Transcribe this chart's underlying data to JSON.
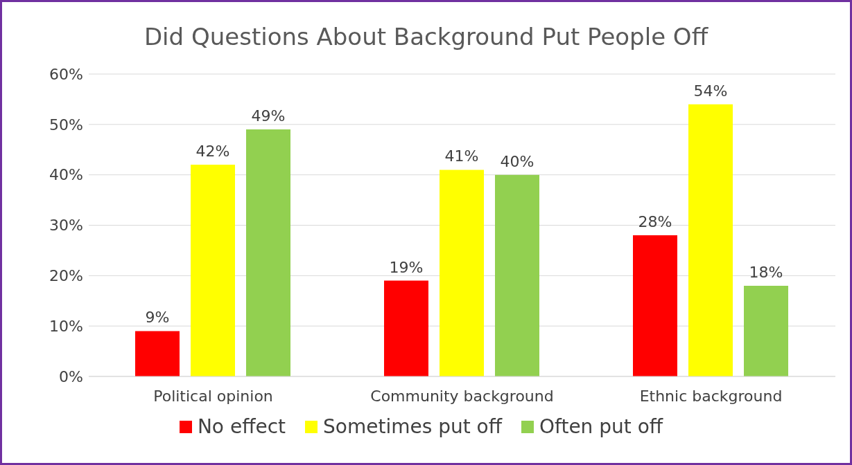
{
  "chart_data": {
    "type": "bar",
    "title": "Did Questions About Background Put People Off",
    "categories": [
      "Political opinion",
      "Community background",
      "Ethnic background"
    ],
    "series": [
      {
        "name": "No effect",
        "color": "#ff0000",
        "values": [
          9,
          19,
          28
        ],
        "value_labels": [
          "9%",
          "19%",
          "28%"
        ]
      },
      {
        "name": "Sometimes put off",
        "color": "#ffff00",
        "values": [
          42,
          41,
          54
        ],
        "value_labels": [
          "42%",
          "41%",
          "54%"
        ]
      },
      {
        "name": "Often put off",
        "color": "#92d050",
        "values": [
          49,
          40,
          18
        ],
        "value_labels": [
          "49%",
          "40%",
          "18%"
        ]
      }
    ],
    "ylim": [
      0,
      60
    ],
    "yticks": [
      {
        "value": 0,
        "label": "0%"
      },
      {
        "value": 10,
        "label": "10%"
      },
      {
        "value": 20,
        "label": "20%"
      },
      {
        "value": 30,
        "label": "30%"
      },
      {
        "value": 40,
        "label": "40%"
      },
      {
        "value": 50,
        "label": "50%"
      },
      {
        "value": 60,
        "label": "60%"
      }
    ],
    "grid": "y",
    "legend": "bottom"
  }
}
